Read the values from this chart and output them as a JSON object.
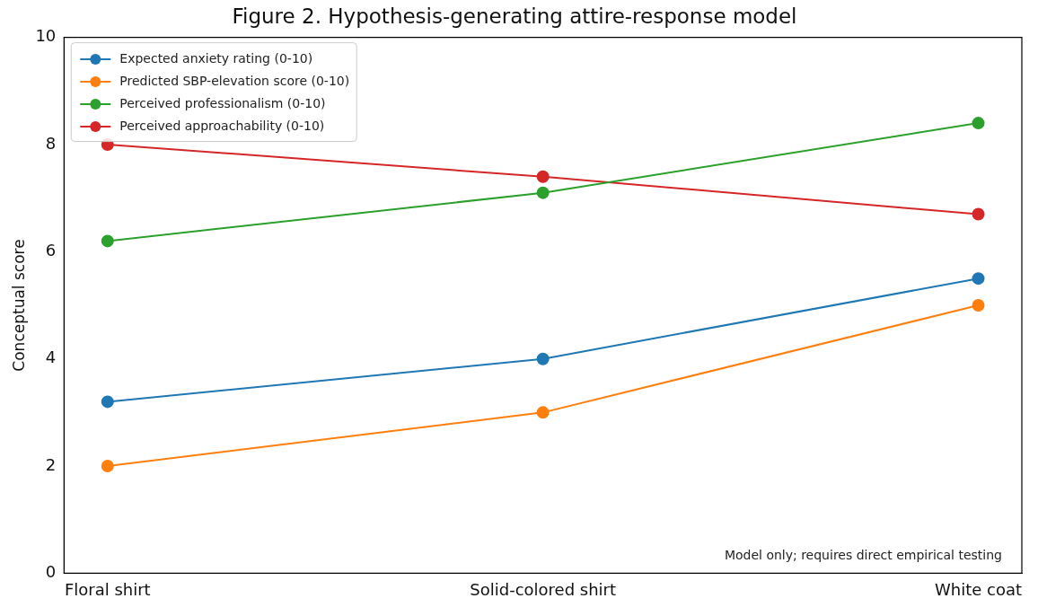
{
  "chart_data": {
    "type": "line",
    "title": "Figure 2. Hypothesis-generating attire-response model",
    "ylabel": "Conceptual score",
    "categories": [
      "Floral shirt",
      "Solid-colored shirt",
      "White coat"
    ],
    "series": [
      {
        "name": "Expected anxiety rating (0-10)",
        "color": "#1f77b4",
        "values": [
          3.2,
          4.0,
          5.5
        ]
      },
      {
        "name": "Predicted SBP-elevation score (0-10)",
        "color": "#ff7f0e",
        "values": [
          2.0,
          3.0,
          5.0
        ]
      },
      {
        "name": "Perceived professionalism (0-10)",
        "color": "#2ca02c",
        "values": [
          6.2,
          7.1,
          8.4
        ]
      },
      {
        "name": "Perceived approachability (0-10)",
        "color": "#d62728",
        "values": [
          8.0,
          7.4,
          6.7
        ]
      }
    ],
    "ylim": [
      0,
      10
    ],
    "yticks": [
      0,
      2,
      4,
      6,
      8,
      10
    ],
    "grid": false,
    "legend": "top left",
    "marker": "circle",
    "line_style": "solid",
    "annotations": [
      "Model only; requires direct empirical testing"
    ]
  }
}
